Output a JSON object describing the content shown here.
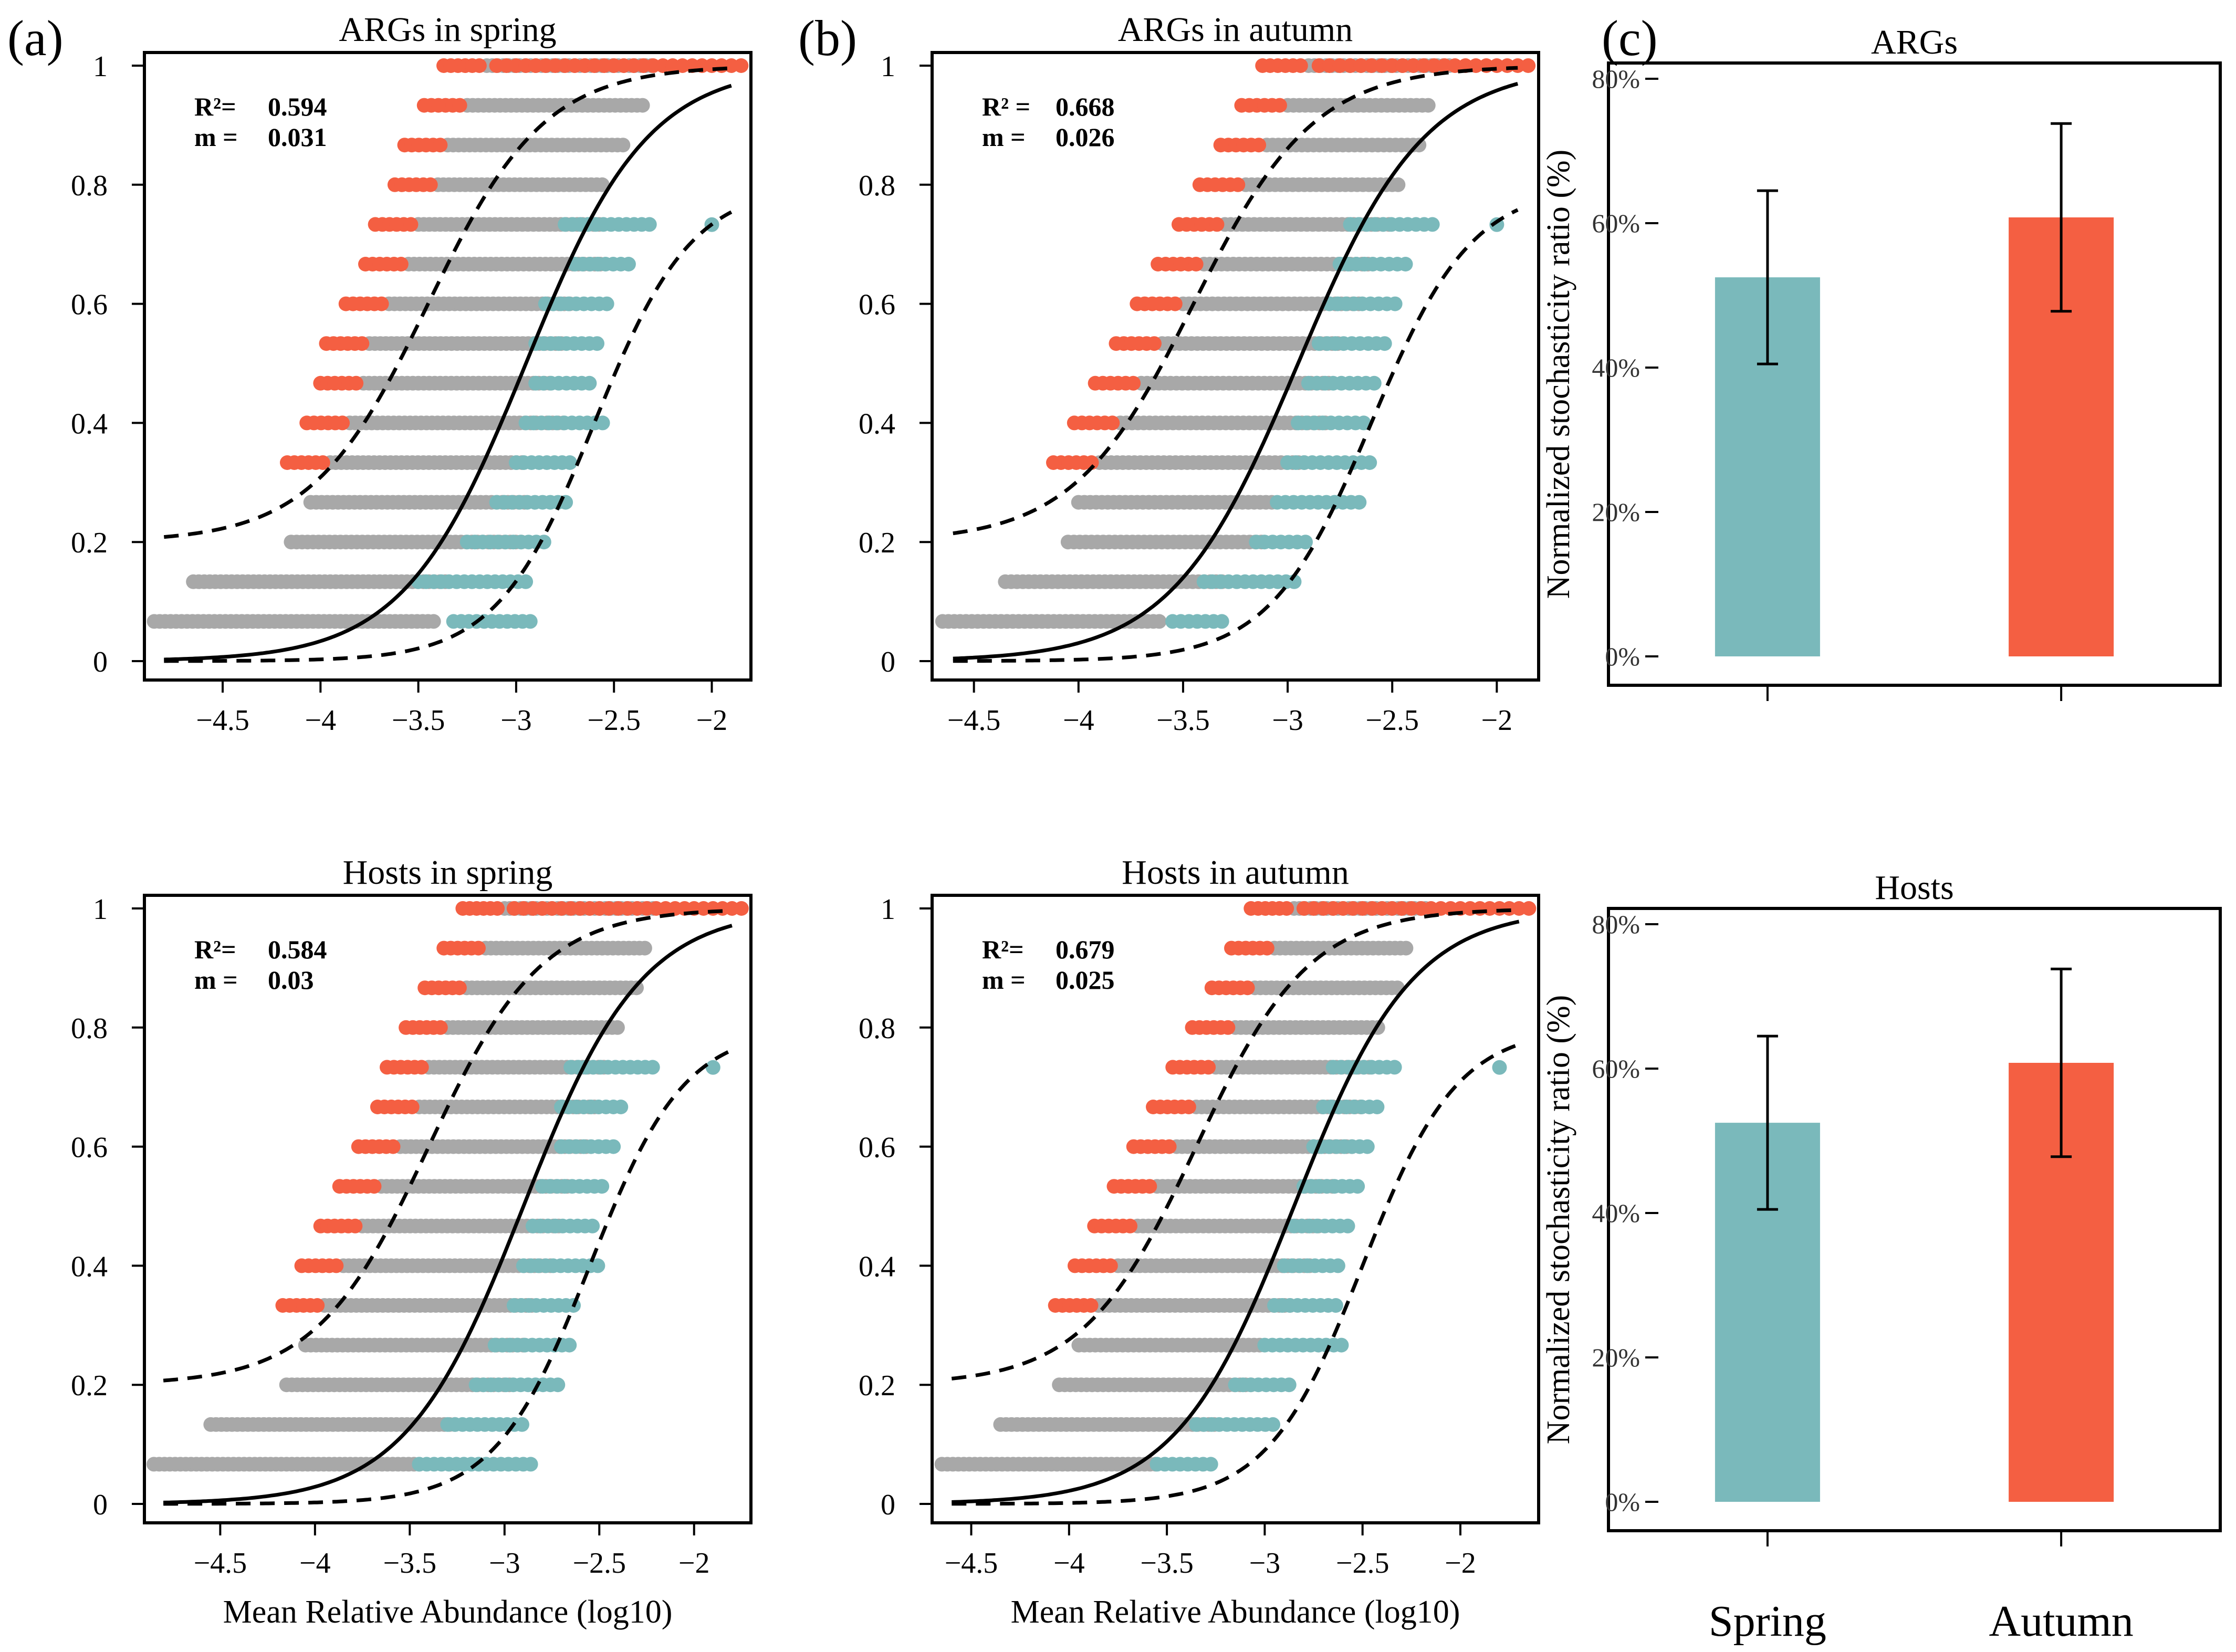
{
  "figure": {
    "panel_letters": [
      "(a)",
      "(b)",
      "(c)"
    ]
  },
  "colors": {
    "teal": "#7ab9bb",
    "red": "#f45f42",
    "gray": "#a8a8a8",
    "line": "#000000"
  },
  "chart_data": [
    {
      "id": "args-spring",
      "type": "scatter",
      "title": "ARGs in spring",
      "xlabel": "",
      "ylabel": "",
      "xlim": [
        -4.9,
        -1.8
      ],
      "ylim": [
        0,
        1
      ],
      "xticks": [
        -4.5,
        -4,
        -3.5,
        -3,
        -2.5,
        -2
      ],
      "xtick_labels": [
        "−4.5",
        "−4",
        "−3.5",
        "−3",
        "−2.5",
        "−2"
      ],
      "yticks": [
        0,
        0.2,
        0.4,
        0.6,
        0.8,
        1
      ],
      "ytick_labels": [
        "0",
        "0.2",
        "0.4",
        "0.6",
        "0.8",
        "1"
      ],
      "stats": {
        "r2_label": "R²=",
        "r2": "0.594",
        "m_label": "m =",
        "m": "0.031"
      },
      "fit": {
        "center": -2.95,
        "slope": 3.2,
        "upper_max": 1.0,
        "upper_min": 0.2,
        "lower_max": 0.8
      },
      "n_levels": 15,
      "point_ranges": [
        [
          -4.85,
          -3.4,
          -3.32,
          -2.92
        ],
        [
          -4.65,
          -3.35,
          -3.5,
          -2.95
        ],
        [
          -4.15,
          -2.95,
          -3.25,
          -2.85
        ],
        [
          -4.05,
          -2.95,
          -3.1,
          -2.72
        ],
        [
          -3.95,
          -2.95,
          -3.0,
          -2.7
        ],
        [
          -3.85,
          -2.75,
          -2.95,
          -2.55
        ],
        [
          -3.78,
          -2.8,
          -2.9,
          -2.6
        ],
        [
          -3.75,
          -2.75,
          -2.9,
          -2.55
        ],
        [
          -3.65,
          -2.7,
          -2.85,
          -2.5
        ],
        [
          -3.55,
          -2.55,
          -2.7,
          -2.4
        ],
        [
          -3.5,
          -2.55,
          -2.75,
          -2.3
        ],
        [
          -3.4,
          -2.55,
          -2.75,
          -2.2
        ],
        [
          -3.35,
          -2.45,
          -2.7,
          -2.25
        ],
        [
          -3.25,
          -2.35,
          -2.65,
          -2.2
        ],
        [
          -3.15,
          -2.3,
          -2.6,
          -2.2
        ]
      ]
    },
    {
      "id": "args-autumn",
      "type": "scatter",
      "title": "ARGs in autumn",
      "xlabel": "",
      "ylabel": "",
      "xlim": [
        -4.7,
        -1.8
      ],
      "ylim": [
        0,
        1
      ],
      "xticks": [
        -4.5,
        -4,
        -3.5,
        -3,
        -2.5,
        -2
      ],
      "xtick_labels": [
        "−4.5",
        "−4",
        "−3.5",
        "−3",
        "−2.5",
        "−2"
      ],
      "yticks": [
        0,
        0.2,
        0.4,
        0.6,
        0.8,
        1
      ],
      "ytick_labels": [
        "0",
        "0.2",
        "0.4",
        "0.6",
        "0.8",
        "1"
      ],
      "stats": {
        "r2_label": "R² =",
        "r2": "0.668",
        "m_label": "m =",
        "m": "0.026"
      },
      "fit": {
        "center": -2.95,
        "slope": 3.3,
        "upper_max": 1.0,
        "upper_min": 0.2,
        "lower_max": 0.8
      },
      "n_levels": 15,
      "point_ranges": [
        [
          -4.65,
          -3.6,
          -3.55,
          -3.3
        ],
        [
          -4.35,
          -3.3,
          -3.4,
          -2.95
        ],
        [
          -4.05,
          -3.1,
          -3.15,
          -2.9
        ],
        [
          -4.0,
          -3.05,
          -3.05,
          -2.65
        ],
        [
          -3.9,
          -2.9,
          -3.0,
          -2.6
        ],
        [
          -3.8,
          -2.8,
          -2.95,
          -2.6
        ],
        [
          -3.7,
          -2.8,
          -2.9,
          -2.55
        ],
        [
          -3.6,
          -2.75,
          -2.85,
          -2.5
        ],
        [
          -3.5,
          -2.65,
          -2.8,
          -2.45
        ],
        [
          -3.4,
          -2.6,
          -2.75,
          -2.4
        ],
        [
          -3.3,
          -2.5,
          -2.7,
          -2.3
        ],
        [
          -3.2,
          -2.45,
          -2.65,
          -2.3
        ],
        [
          -3.1,
          -2.35,
          -2.6,
          -2.25
        ],
        [
          -3.0,
          -2.3,
          -2.55,
          -2.2
        ],
        [
          -2.9,
          -2.2,
          -2.5,
          -2.1
        ]
      ]
    },
    {
      "id": "args-ratio",
      "type": "bar",
      "title": "ARGs",
      "xlabel": "",
      "ylabel": "Normalized stochasticity ratio (%)",
      "categories": [
        "Spring",
        "Autumn"
      ],
      "values": [
        52.5,
        60.8
      ],
      "errors_low": [
        40.5,
        47.8
      ],
      "errors_high": [
        64.5,
        73.8
      ],
      "ylim": [
        0,
        80
      ],
      "yticks": [
        0,
        20,
        40,
        60,
        80
      ],
      "ytick_labels": [
        "0%",
        "20%",
        "40%",
        "60%",
        "80%"
      ]
    },
    {
      "id": "hosts-spring",
      "type": "scatter",
      "title": "Hosts in spring",
      "xlabel": "Mean Relative Abundance (log10)",
      "ylabel": "",
      "xlim": [
        -4.9,
        -1.7
      ],
      "ylim": [
        0,
        1
      ],
      "xticks": [
        -4.5,
        -4,
        -3.5,
        -3,
        -2.5,
        -2
      ],
      "xtick_labels": [
        "−4.5",
        "−4",
        "−3.5",
        "−3",
        "−2.5",
        "−2"
      ],
      "yticks": [
        0,
        0.2,
        0.4,
        0.6,
        0.8,
        1
      ],
      "ytick_labels": [
        "0",
        "0.2",
        "0.4",
        "0.6",
        "0.8",
        "1"
      ],
      "stats": {
        "r2_label": "R²=",
        "r2": "0.584",
        "m_label": "m =",
        "m": "0.03"
      },
      "fit": {
        "center": -2.9,
        "slope": 3.2,
        "upper_max": 1.0,
        "upper_min": 0.2,
        "lower_max": 0.8
      },
      "n_levels": 15,
      "point_ranges": [
        [
          -4.85,
          -3.45,
          -3.45,
          -2.85
        ],
        [
          -4.55,
          -3.25,
          -3.3,
          -2.9
        ],
        [
          -4.15,
          -2.95,
          -3.15,
          -2.7
        ],
        [
          -4.05,
          -2.9,
          -3.05,
          -2.65
        ],
        [
          -3.95,
          -2.85,
          -2.95,
          -2.6
        ],
        [
          -3.85,
          -2.75,
          -2.9,
          -2.5
        ],
        [
          -3.75,
          -2.7,
          -2.85,
          -2.5
        ],
        [
          -3.65,
          -2.65,
          -2.8,
          -2.45
        ],
        [
          -3.55,
          -2.55,
          -2.7,
          -2.4
        ],
        [
          -3.45,
          -2.5,
          -2.7,
          -2.35
        ],
        [
          -3.4,
          -2.45,
          -2.65,
          -2.2
        ],
        [
          -3.3,
          -2.4,
          -2.6,
          -2.15
        ],
        [
          -3.2,
          -2.3,
          -2.55,
          -2.15
        ],
        [
          -3.1,
          -2.25,
          -2.5,
          -2.1
        ],
        [
          -3.0,
          -2.2,
          -2.45,
          -2.05
        ]
      ]
    },
    {
      "id": "hosts-autumn",
      "type": "scatter",
      "title": "Hosts in autumn",
      "xlabel": "Mean Relative Abundance (log10)",
      "ylabel": "",
      "xlim": [
        -4.7,
        -1.6
      ],
      "ylim": [
        0,
        1
      ],
      "xticks": [
        -4.5,
        -4,
        -3.5,
        -3,
        -2.5,
        -2
      ],
      "xtick_labels": [
        "−4.5",
        "−4",
        "−3.5",
        "−3",
        "−2.5",
        "−2"
      ],
      "yticks": [
        0,
        0.2,
        0.4,
        0.6,
        0.8,
        1
      ],
      "ytick_labels": [
        "0",
        "0.2",
        "0.4",
        "0.6",
        "0.8",
        "1"
      ],
      "stats": {
        "r2_label": "R²=",
        "r2": "0.679",
        "m_label": "m =",
        "m": "0.025"
      },
      "fit": {
        "center": -2.85,
        "slope": 3.3,
        "upper_max": 1.0,
        "upper_min": 0.2,
        "lower_max": 0.8
      },
      "n_levels": 15,
      "point_ranges": [
        [
          -4.65,
          -3.55,
          -3.55,
          -3.25
        ],
        [
          -4.35,
          -3.25,
          -3.35,
          -2.95
        ],
        [
          -4.05,
          -3.05,
          -3.15,
          -2.85
        ],
        [
          -3.95,
          -3.0,
          -3.0,
          -2.6
        ],
        [
          -3.85,
          -2.85,
          -2.95,
          -2.6
        ],
        [
          -3.75,
          -2.75,
          -2.9,
          -2.6
        ],
        [
          -3.65,
          -2.7,
          -2.85,
          -2.55
        ],
        [
          -3.55,
          -2.65,
          -2.8,
          -2.5
        ],
        [
          -3.45,
          -2.55,
          -2.75,
          -2.45
        ],
        [
          -3.35,
          -2.5,
          -2.7,
          -2.4
        ],
        [
          -3.25,
          -2.45,
          -2.65,
          -2.3
        ],
        [
          -3.15,
          -2.4,
          -2.6,
          -2.25
        ],
        [
          -3.05,
          -2.3,
          -2.55,
          -2.2
        ],
        [
          -2.95,
          -2.25,
          -2.5,
          -2.15
        ],
        [
          -2.85,
          -2.15,
          -2.45,
          -2.05
        ]
      ]
    },
    {
      "id": "hosts-ratio",
      "type": "bar",
      "title": "Hosts",
      "xlabel": "",
      "ylabel": "Normalized stochasticity ratio (%)",
      "categories": [
        "Spring",
        "Autumn"
      ],
      "values": [
        52.5,
        60.8
      ],
      "errors_low": [
        40.5,
        47.8
      ],
      "errors_high": [
        64.5,
        73.8
      ],
      "ylim": [
        0,
        80
      ],
      "yticks": [
        0,
        20,
        40,
        60,
        80
      ],
      "ytick_labels": [
        "0%",
        "20%",
        "40%",
        "60%",
        "80%"
      ]
    }
  ]
}
